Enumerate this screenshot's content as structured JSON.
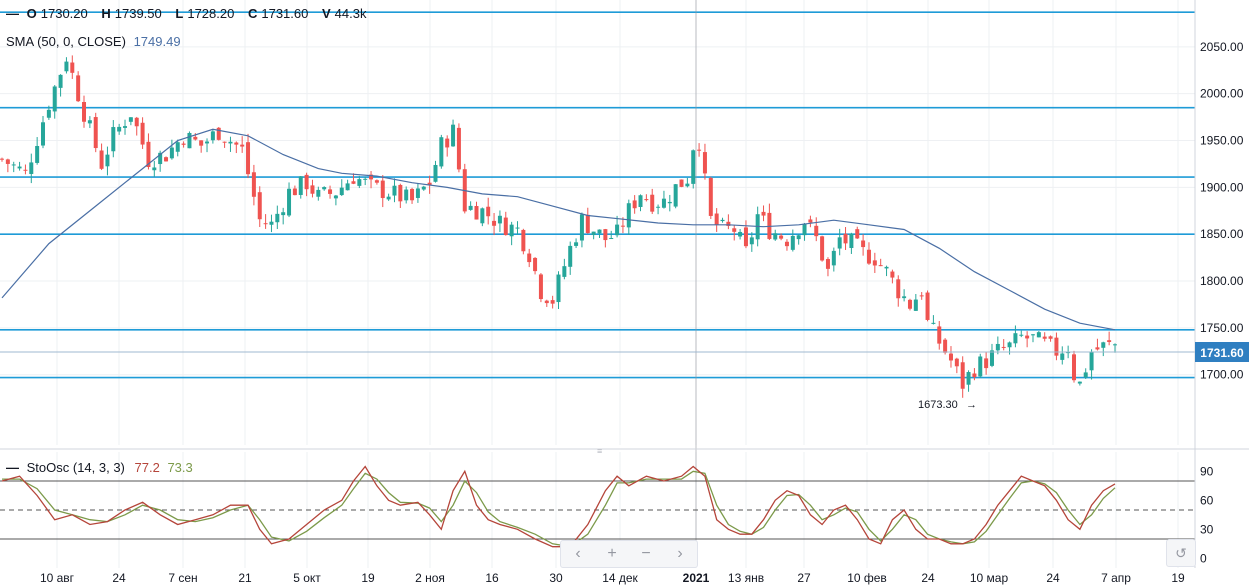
{
  "ohlcv": {
    "dash": "—",
    "o_label": "O",
    "o": "1730.20",
    "h_label": "H",
    "h": "1739.50",
    "l_label": "L",
    "l": "1728.20",
    "c_label": "C",
    "c": "1731.60",
    "v_label": "V",
    "v": "44.3k"
  },
  "sma": {
    "label": "SMA (50, 0, CLOSE)",
    "value": "1749.49",
    "color": "#4a6fa5"
  },
  "stoch": {
    "label": "StoOsc (14, 3, 3)",
    "k": "77.2",
    "d": "73.3",
    "k_color": "#b5453a",
    "d_color": "#7c9a4a"
  },
  "price_badge": "1731.60",
  "low_annotation": "1673.30",
  "colors": {
    "up": "#26a69a",
    "down": "#ef5350",
    "level": "#1e9bd7",
    "badge": "#2f7fc1"
  },
  "chart_data": {
    "type": "candlestick",
    "y_ticks": [
      "2050.00",
      "2000.00",
      "1950.00",
      "1900.00",
      "1850.00",
      "1800.00",
      "1750.00",
      "1700.00"
    ],
    "y_tick_values": [
      2050,
      2000,
      1950,
      1900,
      1850,
      1800,
      1750,
      1700
    ],
    "ylim": [
      1625,
      2100
    ],
    "horizontal_levels": [
      2087,
      1985,
      1911,
      1850,
      1748,
      1697
    ],
    "last_price": 1731.6,
    "x_tick_labels": [
      "10 авг",
      "24",
      "7 сен",
      "21",
      "5 окт",
      "19",
      "2 ноя",
      "16",
      "30",
      "14 дек",
      "2021",
      "13 янв",
      "27",
      "10 фев",
      "24",
      "10 мар",
      "24",
      "7 апр",
      "19"
    ],
    "close_path": [
      [
        0,
        1930
      ],
      [
        4,
        1915
      ],
      [
        8,
        1990
      ],
      [
        11,
        2040
      ],
      [
        14,
        1980
      ],
      [
        17,
        1925
      ],
      [
        19,
        1955
      ],
      [
        22,
        1980
      ],
      [
        25,
        1930
      ],
      [
        28,
        1935
      ],
      [
        31,
        1955
      ],
      [
        34,
        1945
      ],
      [
        37,
        1960
      ],
      [
        41,
        1940
      ],
      [
        44,
        1865
      ],
      [
        46,
        1860
      ],
      [
        49,
        1895
      ],
      [
        52,
        1905
      ],
      [
        54,
        1890
      ],
      [
        57,
        1895
      ],
      [
        60,
        1912
      ],
      [
        63,
        1900
      ],
      [
        66,
        1895
      ],
      [
        70,
        1885
      ],
      [
        73,
        1905
      ],
      [
        75,
        1945
      ],
      [
        77,
        1960
      ],
      [
        79,
        1880
      ],
      [
        82,
        1875
      ],
      [
        85,
        1862
      ],
      [
        88,
        1855
      ],
      [
        90,
        1830
      ],
      [
        92,
        1790
      ],
      [
        94,
        1780
      ],
      [
        97,
        1835
      ],
      [
        99,
        1865
      ],
      [
        101,
        1855
      ],
      [
        103,
        1845
      ],
      [
        105,
        1850
      ],
      [
        107,
        1875
      ],
      [
        109,
        1895
      ],
      [
        111,
        1885
      ],
      [
        113,
        1885
      ],
      [
        115,
        1900
      ],
      [
        117,
        1910
      ],
      [
        118,
        1945
      ],
      [
        119,
        1950
      ],
      [
        120,
        1905
      ],
      [
        121,
        1865
      ],
      [
        123,
        1855
      ],
      [
        125,
        1855
      ],
      [
        127,
        1830
      ],
      [
        129,
        1870
      ],
      [
        131,
        1855
      ],
      [
        134,
        1845
      ],
      [
        137,
        1865
      ],
      [
        139,
        1845
      ],
      [
        141,
        1810
      ],
      [
        143,
        1845
      ],
      [
        145,
        1840
      ],
      [
        147,
        1830
      ],
      [
        149,
        1825
      ],
      [
        151,
        1810
      ],
      [
        153,
        1790
      ],
      [
        155,
        1775
      ],
      [
        157,
        1790
      ],
      [
        158,
        1755
      ],
      [
        160,
        1735
      ],
      [
        162,
        1715
      ],
      [
        164,
        1690
      ],
      [
        166,
        1708
      ],
      [
        168,
        1715
      ],
      [
        170,
        1725
      ],
      [
        172,
        1730
      ],
      [
        174,
        1740
      ],
      [
        176,
        1738
      ],
      [
        178,
        1732
      ],
      [
        180,
        1725
      ],
      [
        182,
        1730
      ],
      [
        183,
        1700
      ],
      [
        184,
        1690
      ],
      [
        186,
        1725
      ],
      [
        188,
        1730
      ],
      [
        190,
        1732
      ]
    ],
    "sma_path": [
      [
        0,
        1782
      ],
      [
        8,
        1840
      ],
      [
        16,
        1880
      ],
      [
        24,
        1920
      ],
      [
        30,
        1950
      ],
      [
        36,
        1962
      ],
      [
        42,
        1955
      ],
      [
        48,
        1935
      ],
      [
        54,
        1920
      ],
      [
        58,
        1915
      ],
      [
        64,
        1912
      ],
      [
        70,
        1905
      ],
      [
        76,
        1900
      ],
      [
        82,
        1893
      ],
      [
        88,
        1890
      ],
      [
        94,
        1880
      ],
      [
        100,
        1870
      ],
      [
        106,
        1866
      ],
      [
        112,
        1862
      ],
      [
        118,
        1860
      ],
      [
        124,
        1860
      ],
      [
        130,
        1858
      ],
      [
        136,
        1860
      ],
      [
        142,
        1865
      ],
      [
        148,
        1860
      ],
      [
        154,
        1855
      ],
      [
        160,
        1835
      ],
      [
        166,
        1810
      ],
      [
        172,
        1790
      ],
      [
        178,
        1770
      ],
      [
        184,
        1755
      ],
      [
        190,
        1748
      ]
    ],
    "n_bars": 191,
    "stoch": {
      "ylim": [
        -10,
        110
      ],
      "y_ticks": [
        90,
        60,
        30,
        0
      ],
      "levels": [
        80,
        50,
        20
      ],
      "k_path": [
        [
          0,
          80
        ],
        [
          3,
          85
        ],
        [
          6,
          65
        ],
        [
          9,
          40
        ],
        [
          12,
          45
        ],
        [
          15,
          35
        ],
        [
          18,
          38
        ],
        [
          21,
          50
        ],
        [
          24,
          58
        ],
        [
          27,
          45
        ],
        [
          30,
          35
        ],
        [
          33,
          40
        ],
        [
          36,
          45
        ],
        [
          39,
          55
        ],
        [
          42,
          55
        ],
        [
          44,
          30
        ],
        [
          46,
          15
        ],
        [
          49,
          20
        ],
        [
          52,
          35
        ],
        [
          55,
          50
        ],
        [
          58,
          60
        ],
        [
          60,
          80
        ],
        [
          62,
          95
        ],
        [
          64,
          75
        ],
        [
          66,
          60
        ],
        [
          68,
          55
        ],
        [
          71,
          58
        ],
        [
          73,
          45
        ],
        [
          75,
          30
        ],
        [
          77,
          70
        ],
        [
          79,
          90
        ],
        [
          81,
          55
        ],
        [
          83,
          40
        ],
        [
          85,
          35
        ],
        [
          88,
          30
        ],
        [
          91,
          20
        ],
        [
          94,
          12
        ],
        [
          97,
          12
        ],
        [
          100,
          35
        ],
        [
          103,
          70
        ],
        [
          105,
          85
        ],
        [
          107,
          75
        ],
        [
          110,
          85
        ],
        [
          113,
          80
        ],
        [
          116,
          85
        ],
        [
          118,
          95
        ],
        [
          120,
          85
        ],
        [
          122,
          40
        ],
        [
          124,
          30
        ],
        [
          126,
          25
        ],
        [
          128,
          25
        ],
        [
          130,
          40
        ],
        [
          132,
          60
        ],
        [
          134,
          70
        ],
        [
          136,
          65
        ],
        [
          138,
          45
        ],
        [
          140,
          35
        ],
        [
          142,
          50
        ],
        [
          144,
          55
        ],
        [
          146,
          40
        ],
        [
          148,
          20
        ],
        [
          150,
          15
        ],
        [
          152,
          40
        ],
        [
          154,
          50
        ],
        [
          156,
          30
        ],
        [
          158,
          20
        ],
        [
          160,
          20
        ],
        [
          162,
          15
        ],
        [
          164,
          15
        ],
        [
          166,
          20
        ],
        [
          168,
          35
        ],
        [
          170,
          55
        ],
        [
          172,
          70
        ],
        [
          174,
          85
        ],
        [
          176,
          80
        ],
        [
          178,
          75
        ],
        [
          180,
          60
        ],
        [
          182,
          40
        ],
        [
          184,
          30
        ],
        [
          186,
          55
        ],
        [
          188,
          70
        ],
        [
          190,
          77
        ]
      ],
      "d_path": [
        [
          0,
          82
        ],
        [
          3,
          82
        ],
        [
          6,
          72
        ],
        [
          9,
          50
        ],
        [
          12,
          45
        ],
        [
          15,
          40
        ],
        [
          18,
          38
        ],
        [
          21,
          45
        ],
        [
          24,
          55
        ],
        [
          27,
          50
        ],
        [
          30,
          40
        ],
        [
          33,
          38
        ],
        [
          36,
          42
        ],
        [
          39,
          50
        ],
        [
          42,
          55
        ],
        [
          44,
          40
        ],
        [
          46,
          22
        ],
        [
          49,
          18
        ],
        [
          52,
          28
        ],
        [
          55,
          42
        ],
        [
          58,
          55
        ],
        [
          60,
          72
        ],
        [
          62,
          88
        ],
        [
          64,
          82
        ],
        [
          66,
          68
        ],
        [
          68,
          58
        ],
        [
          71,
          57
        ],
        [
          73,
          52
        ],
        [
          75,
          38
        ],
        [
          77,
          55
        ],
        [
          79,
          80
        ],
        [
          81,
          68
        ],
        [
          83,
          48
        ],
        [
          85,
          38
        ],
        [
          88,
          32
        ],
        [
          91,
          25
        ],
        [
          94,
          15
        ],
        [
          97,
          12
        ],
        [
          100,
          25
        ],
        [
          103,
          55
        ],
        [
          105,
          78
        ],
        [
          107,
          78
        ],
        [
          110,
          82
        ],
        [
          113,
          82
        ],
        [
          116,
          82
        ],
        [
          118,
          90
        ],
        [
          120,
          88
        ],
        [
          122,
          55
        ],
        [
          124,
          35
        ],
        [
          126,
          28
        ],
        [
          128,
          25
        ],
        [
          130,
          32
        ],
        [
          132,
          50
        ],
        [
          134,
          65
        ],
        [
          136,
          66
        ],
        [
          138,
          55
        ],
        [
          140,
          40
        ],
        [
          142,
          45
        ],
        [
          144,
          52
        ],
        [
          146,
          48
        ],
        [
          148,
          30
        ],
        [
          150,
          18
        ],
        [
          152,
          30
        ],
        [
          154,
          45
        ],
        [
          156,
          40
        ],
        [
          158,
          25
        ],
        [
          160,
          20
        ],
        [
          162,
          17
        ],
        [
          164,
          15
        ],
        [
          166,
          17
        ],
        [
          168,
          28
        ],
        [
          170,
          45
        ],
        [
          172,
          62
        ],
        [
          174,
          78
        ],
        [
          176,
          80
        ],
        [
          178,
          77
        ],
        [
          180,
          68
        ],
        [
          182,
          50
        ],
        [
          184,
          35
        ],
        [
          186,
          45
        ],
        [
          188,
          62
        ],
        [
          190,
          73
        ]
      ]
    }
  }
}
